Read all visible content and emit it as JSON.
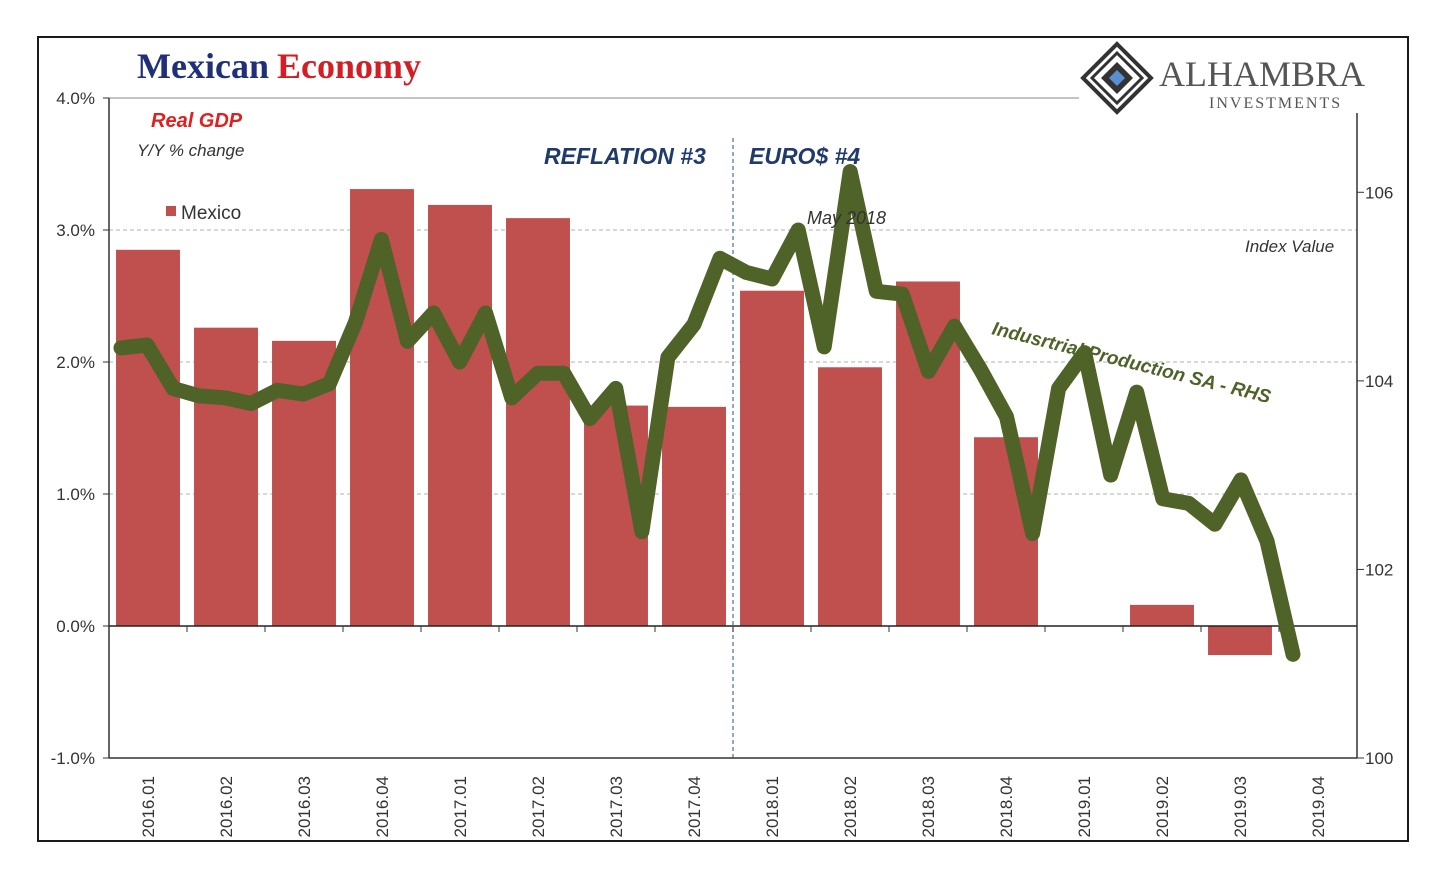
{
  "title_part1": "Mexican",
  "title_part2": "Economy",
  "colors": {
    "title1": "#1f2f7a",
    "title2": "#d21f26",
    "bar": "#c0504d",
    "line": "#4f6228",
    "subtitle_red": "#e02020",
    "annot_blue": "#1f3a6b",
    "annot_green": "#4f6228"
  },
  "logo": {
    "name": "ALHAMBRA",
    "sub": "INVESTMENTS"
  },
  "chart_data": {
    "type": "bar",
    "title": "Mexican Economy",
    "subtitle": "Real GDP",
    "subtitle2": "Y/Y % change",
    "legend": [
      "Mexico"
    ],
    "categories": [
      "2016.01",
      "2016.02",
      "2016.03",
      "2016.04",
      "2017.01",
      "2017.02",
      "2017.03",
      "2017.04",
      "2018.01",
      "2018.02",
      "2018.03",
      "2018.04",
      "2019.01",
      "2019.02",
      "2019.03",
      "2019.04"
    ],
    "values": [
      2.85,
      2.26,
      2.16,
      3.31,
      3.19,
      3.09,
      1.67,
      1.66,
      2.54,
      1.96,
      2.61,
      1.43,
      null,
      0.16,
      -0.22,
      null
    ],
    "y_left_ticks": [
      "4.0%",
      "3.0%",
      "2.0%",
      "1.0%",
      "0.0%",
      "-1.0%"
    ],
    "ylim": [
      -1.0,
      4.0
    ],
    "y_right_label": "Index Value",
    "y_right_ticks": [
      "106",
      "104",
      "102",
      "100"
    ],
    "y_right_lim": [
      100,
      107
    ],
    "series_rhs": {
      "name": "Indusrtrial Production SA - RHS",
      "values": [
        104.35,
        104.38,
        103.92,
        103.84,
        103.82,
        103.76,
        103.9,
        103.86,
        103.97,
        104.62,
        105.5,
        104.42,
        104.72,
        104.2,
        104.72,
        103.82,
        104.08,
        104.08,
        103.6,
        103.92,
        102.4,
        104.25,
        104.6,
        105.3,
        105.15,
        105.08,
        105.6,
        104.36,
        106.22,
        104.95,
        104.92,
        104.1,
        104.58,
        104.12,
        103.62,
        102.38,
        103.92,
        104.3,
        103.0,
        103.88,
        102.75,
        102.7,
        102.48,
        102.95,
        102.3,
        101.1
      ]
    },
    "annotations": {
      "reflation": "REFLATION #3",
      "euros": "EURO$ #4",
      "may": "May 2018"
    }
  }
}
